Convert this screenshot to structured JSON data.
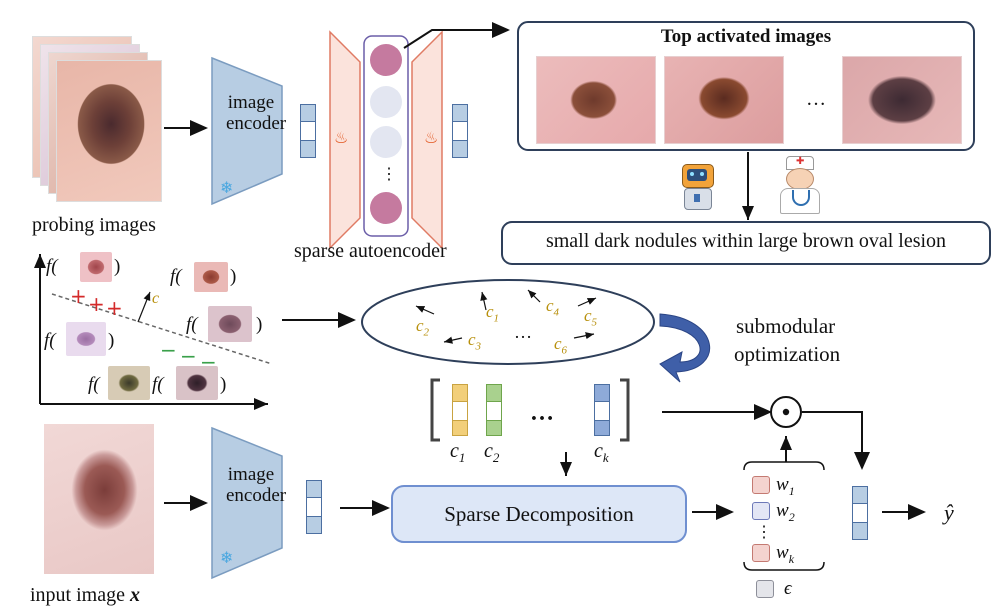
{
  "labels": {
    "probing_images": "probing images",
    "image_encoder_top": "image encoder",
    "image_encoder_bottom": "image encoder",
    "sparse_autoencoder": "sparse autoencoder",
    "top_activated_images": "Top activated images",
    "ellipsis": "…",
    "description": "small dark nodules within large brown oval lesion",
    "submodular_line1": "submodular",
    "submodular_line2": "optimization",
    "sparse_decomposition": "Sparse Decomposition",
    "input_image_prefix": "input image ",
    "input_image_var": "x",
    "y_hat": "ŷ",
    "odot": "⊙",
    "dots": "…",
    "vdots": "⋮"
  },
  "scatter": {
    "f_label": "f(",
    "close": ")",
    "plus": "+",
    "minus": "−",
    "c_label": "c"
  },
  "concepts": {
    "ellipse_items": [
      "c2",
      "c1",
      "c4",
      "c5",
      "c3",
      "c6"
    ],
    "ellipse_dots": "…",
    "matrix_labels": [
      "c1",
      "c2",
      "ck"
    ]
  },
  "weights": [
    "w1",
    "w2",
    "wk"
  ],
  "epsilon": "ϵ",
  "colors": {
    "encoder_fill": "#b7cde3",
    "encoder_stroke": "#7b9cc0",
    "sae_fill": "#fbe3dc",
    "sae_stroke": "#e07b64",
    "neuron_active": "#c57a9f",
    "neuron_inactive": "#e3e6f1",
    "concept_yellow": "#f2cf7a",
    "concept_green": "#a9d18e",
    "concept_blue": "#8eaad8",
    "decomp_fill": "#dde7f7",
    "decomp_stroke": "#6f8fd0",
    "arrow_blue": "#3f5fa8",
    "c_text": "#b8900c"
  },
  "icons": [
    "snowflake-icon",
    "flame-icon",
    "robot-icon",
    "doctor-icon"
  ]
}
